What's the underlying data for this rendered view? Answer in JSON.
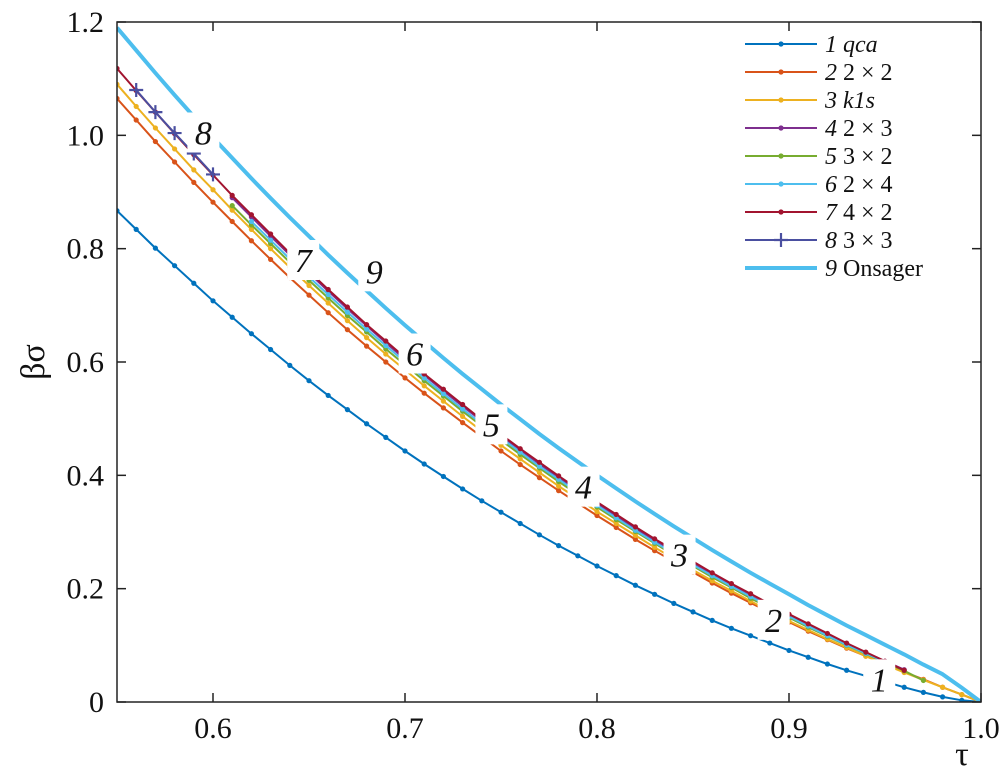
{
  "chart_data": {
    "type": "line",
    "xlabel": "τ",
    "ylabel": "βσ",
    "xlim": [
      0.55,
      1.0
    ],
    "ylim": [
      0,
      1.2
    ],
    "xticks": [
      "0.6",
      "0.7",
      "0.8",
      "0.9",
      "1.0"
    ],
    "xtick_values": [
      0.6,
      0.7,
      0.8,
      0.9,
      1.0
    ],
    "yticks": [
      "0",
      "0.2",
      "0.4",
      "0.6",
      "0.8",
      "1.0",
      "1.2"
    ],
    "ytick_values": [
      0,
      0.2,
      0.4,
      0.6,
      0.8,
      1.0,
      1.2
    ],
    "grid": false,
    "legend_position": "top-right",
    "series": [
      {
        "id": "1",
        "num": "1",
        "name": "qca",
        "name_italic": true,
        "color": "#0072BD",
        "marker": "dot",
        "width": 2,
        "x": [
          0.55,
          0.56,
          0.57,
          0.58,
          0.59,
          0.6,
          0.61,
          0.62,
          0.63,
          0.64,
          0.65,
          0.66,
          0.67,
          0.68,
          0.69,
          0.7,
          0.71,
          0.72,
          0.73,
          0.74,
          0.75,
          0.76,
          0.77,
          0.78,
          0.79,
          0.8,
          0.81,
          0.82,
          0.83,
          0.84,
          0.85,
          0.86,
          0.87,
          0.88,
          0.89,
          0.9,
          0.91,
          0.92,
          0.93,
          0.94,
          0.95,
          0.96,
          0.97,
          0.98,
          0.99,
          1.0
        ],
        "y": [
          0.867,
          0.834,
          0.801,
          0.77,
          0.739,
          0.708,
          0.679,
          0.65,
          0.622,
          0.594,
          0.567,
          0.541,
          0.516,
          0.491,
          0.467,
          0.443,
          0.42,
          0.398,
          0.376,
          0.355,
          0.335,
          0.315,
          0.295,
          0.276,
          0.258,
          0.24,
          0.223,
          0.206,
          0.19,
          0.174,
          0.159,
          0.144,
          0.13,
          0.117,
          0.104,
          0.091,
          0.079,
          0.067,
          0.056,
          0.046,
          0.036,
          0.026,
          0.017,
          0.009,
          0.003,
          0.0
        ]
      },
      {
        "id": "2",
        "num": "2",
        "name": "2 × 2",
        "name_italic": false,
        "color": "#D95319",
        "marker": "dot",
        "width": 2,
        "x": [
          0.55,
          0.56,
          0.57,
          0.58,
          0.59,
          0.6,
          0.61,
          0.62,
          0.63,
          0.64,
          0.65,
          0.66,
          0.67,
          0.68,
          0.69,
          0.7,
          0.71,
          0.72,
          0.73,
          0.74,
          0.75,
          0.76,
          0.77,
          0.78,
          0.79,
          0.8,
          0.81,
          0.82,
          0.83,
          0.84,
          0.85,
          0.86,
          0.87,
          0.88,
          0.89,
          0.9,
          0.91,
          0.92,
          0.93,
          0.94,
          0.95,
          0.96,
          0.97,
          0.98,
          0.99,
          1.0
        ],
        "y": [
          1.065,
          1.027,
          0.989,
          0.953,
          0.917,
          0.882,
          0.848,
          0.814,
          0.781,
          0.749,
          0.718,
          0.687,
          0.657,
          0.628,
          0.6,
          0.572,
          0.545,
          0.519,
          0.493,
          0.468,
          0.443,
          0.419,
          0.396,
          0.373,
          0.351,
          0.329,
          0.308,
          0.287,
          0.267,
          0.248,
          0.229,
          0.21,
          0.192,
          0.175,
          0.158,
          0.141,
          0.125,
          0.11,
          0.095,
          0.081,
          0.067,
          0.053,
          0.04,
          0.026,
          0.013,
          0.0
        ]
      },
      {
        "id": "3",
        "num": "3",
        "name": "k1s",
        "name_italic": true,
        "color": "#EDB120",
        "marker": "dot",
        "width": 2,
        "x": [
          0.55,
          0.56,
          0.57,
          0.58,
          0.59,
          0.6,
          0.61,
          0.62,
          0.63,
          0.64,
          0.65,
          0.66,
          0.67,
          0.68,
          0.69,
          0.7,
          0.71,
          0.72,
          0.73,
          0.74,
          0.75,
          0.76,
          0.77,
          0.78,
          0.79,
          0.8,
          0.81,
          0.82,
          0.83,
          0.84,
          0.85,
          0.86,
          0.87,
          0.88,
          0.89,
          0.9,
          0.91,
          0.92,
          0.93,
          0.94,
          0.95,
          0.96,
          0.97,
          0.98,
          0.99,
          1.0
        ],
        "y": [
          1.09,
          1.051,
          1.013,
          0.976,
          0.939,
          0.904,
          0.868,
          0.834,
          0.8,
          0.767,
          0.735,
          0.704,
          0.673,
          0.643,
          0.614,
          0.586,
          0.558,
          0.531,
          0.504,
          0.478,
          0.453,
          0.429,
          0.405,
          0.381,
          0.359,
          0.336,
          0.315,
          0.294,
          0.273,
          0.253,
          0.233,
          0.214,
          0.196,
          0.178,
          0.16,
          0.143,
          0.127,
          0.111,
          0.096,
          0.081,
          0.066,
          0.052,
          0.039,
          0.026,
          0.013,
          0.0
        ]
      },
      {
        "id": "4",
        "num": "4",
        "name": "2 × 3",
        "name_italic": false,
        "color": "#7E2F8E",
        "marker": "dot",
        "width": 2,
        "x": [
          0.61,
          0.62,
          0.63,
          0.64,
          0.65,
          0.66,
          0.67,
          0.68,
          0.69,
          0.7,
          0.71,
          0.72,
          0.73,
          0.74,
          0.75,
          0.76,
          0.77,
          0.78,
          0.79,
          0.8,
          0.81,
          0.82,
          0.83,
          0.84,
          0.85,
          0.86,
          0.87,
          0.88,
          0.89,
          0.9,
          0.91,
          0.92,
          0.93,
          0.94,
          0.95,
          0.96
        ],
        "y": [
          0.89,
          0.856,
          0.822,
          0.789,
          0.757,
          0.725,
          0.694,
          0.664,
          0.634,
          0.605,
          0.577,
          0.549,
          0.522,
          0.496,
          0.47,
          0.445,
          0.42,
          0.396,
          0.373,
          0.35,
          0.328,
          0.306,
          0.285,
          0.264,
          0.244,
          0.225,
          0.206,
          0.187,
          0.169,
          0.152,
          0.135,
          0.118,
          0.102,
          0.087,
          0.072,
          0.057
        ]
      },
      {
        "id": "5",
        "num": "5",
        "name": "3 × 2",
        "name_italic": false,
        "color": "#77AC30",
        "marker": "dot",
        "width": 2,
        "x": [
          0.61,
          0.62,
          0.63,
          0.64,
          0.65,
          0.66,
          0.67,
          0.68,
          0.69,
          0.7,
          0.71,
          0.72,
          0.73,
          0.74,
          0.75,
          0.76,
          0.77,
          0.78,
          0.79,
          0.8,
          0.81,
          0.82,
          0.83,
          0.84,
          0.85,
          0.86,
          0.87,
          0.88,
          0.89,
          0.9,
          0.91,
          0.92,
          0.93,
          0.94,
          0.95,
          0.96,
          0.97
        ],
        "y": [
          0.876,
          0.842,
          0.809,
          0.776,
          0.744,
          0.713,
          0.682,
          0.653,
          0.623,
          0.595,
          0.567,
          0.54,
          0.513,
          0.487,
          0.462,
          0.437,
          0.413,
          0.389,
          0.366,
          0.344,
          0.322,
          0.301,
          0.28,
          0.259,
          0.24,
          0.22,
          0.202,
          0.183,
          0.166,
          0.149,
          0.132,
          0.116,
          0.1,
          0.085,
          0.07,
          0.055,
          0.038
        ]
      },
      {
        "id": "6",
        "num": "6",
        "name": "2 × 4",
        "name_italic": false,
        "color": "#4DBEEE",
        "marker": "dot",
        "width": 2,
        "x": [
          0.62,
          0.63,
          0.64,
          0.65,
          0.66,
          0.67,
          0.68,
          0.69,
          0.7,
          0.71,
          0.72,
          0.73,
          0.74,
          0.75,
          0.76,
          0.77,
          0.78,
          0.79,
          0.8,
          0.81,
          0.82,
          0.83,
          0.84,
          0.85,
          0.86,
          0.87,
          0.88,
          0.89,
          0.9,
          0.91,
          0.92,
          0.93,
          0.94,
          0.95
        ],
        "y": [
          0.848,
          0.815,
          0.782,
          0.75,
          0.719,
          0.688,
          0.658,
          0.629,
          0.6,
          0.572,
          0.544,
          0.517,
          0.491,
          0.466,
          0.441,
          0.416,
          0.393,
          0.37,
          0.347,
          0.325,
          0.303,
          0.282,
          0.262,
          0.242,
          0.223,
          0.204,
          0.186,
          0.168,
          0.151,
          0.134,
          0.117,
          0.101,
          0.086,
          0.071
        ]
      },
      {
        "id": "7",
        "num": "7",
        "name": "4 × 2",
        "name_italic": false,
        "color": "#A2142F",
        "marker": "dot",
        "width": 2,
        "x": [
          0.55,
          0.56,
          0.57,
          0.58,
          0.59,
          0.6,
          0.61,
          0.62,
          0.63,
          0.64,
          0.65,
          0.66,
          0.67,
          0.68,
          0.69,
          0.7,
          0.71,
          0.72,
          0.73,
          0.74,
          0.75,
          0.76,
          0.77,
          0.78,
          0.79,
          0.8,
          0.81,
          0.82,
          0.83,
          0.84,
          0.85,
          0.86,
          0.87,
          0.88,
          0.89,
          0.9,
          0.91,
          0.92,
          0.93,
          0.94,
          0.95,
          0.96
        ],
        "y": [
          1.118,
          1.079,
          1.041,
          1.003,
          0.966,
          0.93,
          0.894,
          0.86,
          0.826,
          0.792,
          0.76,
          0.728,
          0.697,
          0.666,
          0.637,
          0.608,
          0.579,
          0.552,
          0.525,
          0.498,
          0.472,
          0.447,
          0.423,
          0.399,
          0.376,
          0.353,
          0.331,
          0.309,
          0.288,
          0.268,
          0.248,
          0.228,
          0.209,
          0.191,
          0.173,
          0.155,
          0.138,
          0.121,
          0.104,
          0.088,
          0.072,
          0.056
        ]
      },
      {
        "id": "8",
        "num": "8",
        "name": "3 × 3",
        "name_italic": false,
        "color": "#4A4FA0",
        "marker": "plus",
        "width": 2,
        "x": [
          0.56,
          0.57,
          0.58,
          0.59,
          0.6
        ],
        "y": [
          1.08,
          1.041,
          1.004,
          0.968,
          0.931
        ]
      },
      {
        "id": "9",
        "num": "9",
        "name": "Onsager",
        "name_italic": false,
        "color": "#4DBEEE",
        "marker": "none",
        "width": 4,
        "x": [
          0.55,
          0.56,
          0.57,
          0.58,
          0.59,
          0.6,
          0.61,
          0.62,
          0.63,
          0.64,
          0.65,
          0.66,
          0.67,
          0.68,
          0.69,
          0.7,
          0.71,
          0.72,
          0.73,
          0.74,
          0.75,
          0.76,
          0.77,
          0.78,
          0.79,
          0.8,
          0.81,
          0.82,
          0.83,
          0.84,
          0.85,
          0.86,
          0.87,
          0.88,
          0.89,
          0.9,
          0.91,
          0.92,
          0.93,
          0.94,
          0.95,
          0.96,
          0.97,
          0.98,
          0.99,
          1.0
        ],
        "y": [
          1.19,
          1.15,
          1.11,
          1.071,
          1.033,
          0.996,
          0.96,
          0.924,
          0.889,
          0.855,
          0.822,
          0.789,
          0.757,
          0.726,
          0.695,
          0.665,
          0.636,
          0.607,
          0.579,
          0.552,
          0.525,
          0.499,
          0.473,
          0.448,
          0.424,
          0.4,
          0.377,
          0.354,
          0.332,
          0.31,
          0.289,
          0.268,
          0.248,
          0.228,
          0.209,
          0.19,
          0.171,
          0.153,
          0.135,
          0.118,
          0.101,
          0.084,
          0.066,
          0.049,
          0.025,
          0.0
        ]
      }
    ],
    "curve_labels": [
      {
        "text": "1",
        "x": 0.947,
        "y": 0.04
      },
      {
        "text": "2",
        "x": 0.892,
        "y": 0.145
      },
      {
        "text": "3",
        "x": 0.843,
        "y": 0.26
      },
      {
        "text": "4",
        "x": 0.793,
        "y": 0.38
      },
      {
        "text": "5",
        "x": 0.745,
        "y": 0.49
      },
      {
        "text": "6",
        "x": 0.705,
        "y": 0.615
      },
      {
        "text": "7",
        "x": 0.647,
        "y": 0.78
      },
      {
        "text": "8",
        "x": 0.595,
        "y": 1.005
      },
      {
        "text": "9",
        "x": 0.684,
        "y": 0.76
      }
    ]
  }
}
